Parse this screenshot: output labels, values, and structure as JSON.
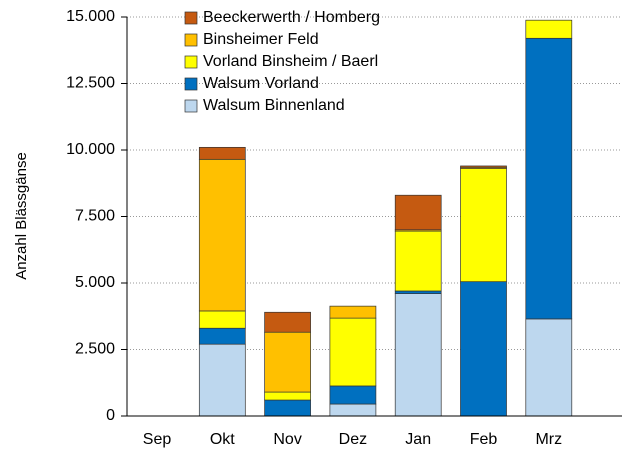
{
  "chart_data": {
    "type": "stacked_bar",
    "y_label": "Anzahl Blässgänse",
    "categories": [
      "Sep",
      "Okt",
      "Nov",
      "Dez",
      "Jan",
      "Feb",
      "Mrz"
    ],
    "series": [
      {
        "name": "Walsum Binnenland",
        "color": "#bdd7ee",
        "values": [
          0,
          2700,
          0,
          450,
          4600,
          0,
          3650
        ]
      },
      {
        "name": "Walsum Vorland",
        "color": "#0070c0",
        "values": [
          0,
          600,
          600,
          680,
          100,
          5050,
          10550
        ]
      },
      {
        "name": "Vorland Binsheim / Baerl",
        "color": "#ffff00",
        "values": [
          0,
          650,
          300,
          2550,
          2250,
          4250,
          680
        ]
      },
      {
        "name": "Binsheimer Feld",
        "color": "#ffc000",
        "values": [
          0,
          5700,
          2250,
          450,
          50,
          50,
          0
        ]
      },
      {
        "name": "Beeckerwerth / Homberg",
        "color": "#c55a11",
        "values": [
          0,
          450,
          750,
          0,
          1300,
          50,
          0
        ]
      }
    ],
    "ylim": [
      0,
      15000
    ],
    "yticks": [
      0,
      {
        "value": 2500,
        "label": "2.500"
      },
      {
        "value": 5000,
        "label": "5.000"
      },
      {
        "value": 7500,
        "label": "7.500"
      },
      {
        "value": 10000,
        "label": "10.000"
      },
      {
        "value": 12500,
        "label": "12.500"
      },
      {
        "value": 15000,
        "label": "15.000"
      }
    ],
    "grid": true
  }
}
